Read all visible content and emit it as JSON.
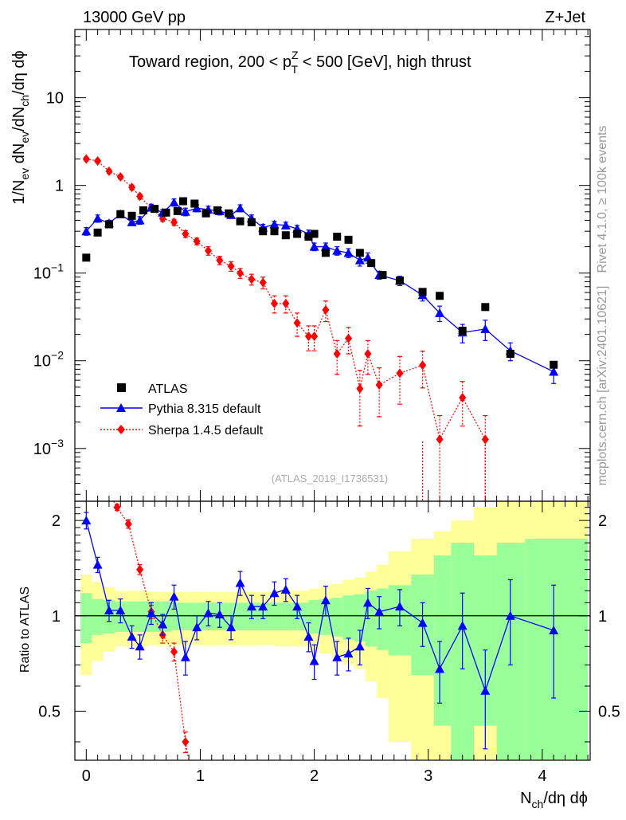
{
  "header": {
    "energy": "13000 GeV pp",
    "process": "Z+Jet",
    "title_prefix": "Toward region, 200 < p",
    "title_sup": "Z",
    "title_sub": "T",
    "title_suffix": " < 500 [GeV], high thrust",
    "rivet": "Rivet 4.1.0, ≥ 100k events",
    "mcplots": "mcplots.cern.ch [arXiv:2401.10621]",
    "analysis": "(ATLAS_2019_I1736531)"
  },
  "axes": {
    "y_main_parts": [
      "1/N",
      "ev",
      " dN",
      "ev",
      "/dN",
      "ch",
      "/dη dϕ"
    ],
    "y_ratio": "Ratio to ATLAS",
    "x_parts": [
      "N",
      "ch",
      "/dη dϕ"
    ],
    "x_ticks": [
      "0",
      "1",
      "2",
      "3",
      "4"
    ],
    "y_main_ticks": [
      {
        "base": "10",
        "exp": "",
        "v": 10
      },
      {
        "base": "1",
        "exp": "",
        "v": 1
      },
      {
        "base": "10",
        "exp": "−1",
        "v": 0.1
      },
      {
        "base": "10",
        "exp": "−2",
        "v": 0.01
      },
      {
        "base": "10",
        "exp": "−3",
        "v": 0.001
      }
    ],
    "y_ratio_ticks": [
      "2",
      "1",
      "0.5"
    ]
  },
  "legend": {
    "atlas": "ATLAS",
    "pythia": "Pythia 8.315 default",
    "sherpa": "Sherpa 1.4.5 default"
  },
  "colors": {
    "atlas": "#000000",
    "pythia": "#0000ff",
    "sherpa": "#ff0000",
    "band_inner": "#99ff99",
    "band_outer": "#ffff99"
  },
  "chart_data": {
    "type": "scatter",
    "xlim": [
      -0.1,
      4.42
    ],
    "ylim_main": [
      0.00025,
      60
    ],
    "ylim_ratio": [
      0.35,
      2.3
    ],
    "xlabel": "Nch/dη dϕ",
    "ylabel": "1/Nev dNev/dNch/dη dϕ",
    "atlas": {
      "x": [
        0.0,
        0.1,
        0.2,
        0.3,
        0.4,
        0.5,
        0.6,
        0.7,
        0.8,
        0.85,
        0.95,
        1.05,
        1.15,
        1.25,
        1.35,
        1.45,
        1.55,
        1.65,
        1.75,
        1.85,
        1.95,
        2.0,
        2.1,
        2.2,
        2.3,
        2.4,
        2.5,
        2.6,
        2.75,
        2.95,
        3.1,
        3.3,
        3.5,
        3.72,
        4.1
      ],
      "y": [
        0.15,
        0.29,
        0.36,
        0.47,
        0.45,
        0.52,
        0.54,
        0.49,
        0.51,
        0.66,
        0.62,
        0.48,
        0.52,
        0.48,
        0.39,
        0.38,
        0.3,
        0.3,
        0.27,
        0.28,
        0.26,
        0.28,
        0.17,
        0.26,
        0.24,
        0.17,
        0.13,
        0.095,
        0.082,
        0.061,
        0.055,
        0.022,
        0.041,
        0.012,
        0.009
      ]
    },
    "pythia": {
      "x": [
        0.0,
        0.1,
        0.2,
        0.3,
        0.4,
        0.47,
        0.57,
        0.67,
        0.77,
        0.87,
        0.97,
        1.07,
        1.17,
        1.27,
        1.35,
        1.45,
        1.55,
        1.65,
        1.75,
        1.85,
        1.95,
        2.0,
        2.1,
        2.2,
        2.3,
        2.4,
        2.47,
        2.57,
        2.75,
        2.95,
        3.1,
        3.3,
        3.5,
        3.72,
        4.1
      ],
      "y": [
        0.3,
        0.42,
        0.37,
        0.47,
        0.38,
        0.4,
        0.56,
        0.49,
        0.64,
        0.5,
        0.55,
        0.53,
        0.51,
        0.46,
        0.55,
        0.42,
        0.33,
        0.36,
        0.35,
        0.32,
        0.28,
        0.2,
        0.2,
        0.18,
        0.17,
        0.14,
        0.15,
        0.095,
        0.082,
        0.056,
        0.035,
        0.021,
        0.023,
        0.013,
        0.0075
      ],
      "err": [
        0.03,
        0.04,
        0.03,
        0.04,
        0.03,
        0.04,
        0.05,
        0.04,
        0.06,
        0.05,
        0.05,
        0.05,
        0.05,
        0.04,
        0.05,
        0.04,
        0.03,
        0.03,
        0.03,
        0.03,
        0.03,
        0.02,
        0.02,
        0.02,
        0.02,
        0.02,
        0.02,
        0.01,
        0.01,
        0.008,
        0.007,
        0.005,
        0.006,
        0.003,
        0.002
      ]
    },
    "sherpa": {
      "x": [
        0.0,
        0.1,
        0.2,
        0.3,
        0.4,
        0.47,
        0.57,
        0.67,
        0.77,
        0.87,
        0.97,
        1.07,
        1.17,
        1.27,
        1.35,
        1.45,
        1.55,
        1.65,
        1.75,
        1.85,
        1.95,
        2.0,
        2.1,
        2.2,
        2.3,
        2.4,
        2.47,
        2.57,
        2.75,
        2.95,
        3.1,
        3.3,
        3.5,
        3.72,
        4.1
      ],
      "y": [
        2.0,
        1.9,
        1.45,
        1.25,
        0.95,
        0.75,
        0.55,
        0.42,
        0.38,
        0.28,
        0.23,
        0.18,
        0.14,
        0.12,
        0.1,
        0.085,
        0.078,
        0.045,
        0.045,
        0.027,
        0.019,
        0.019,
        0.038,
        0.012,
        0.018,
        0.0048,
        0.012,
        0.0053,
        0.0072,
        0.0089,
        0.00127,
        0.0038,
        0.00127,
        null,
        null
      ],
      "err": [
        0.1,
        0.1,
        0.08,
        0.07,
        0.06,
        0.05,
        0.04,
        0.03,
        0.03,
        0.025,
        0.02,
        0.02,
        0.015,
        0.015,
        0.013,
        0.012,
        0.012,
        0.01,
        0.01,
        0.008,
        0.006,
        0.006,
        0.01,
        0.005,
        0.006,
        0.003,
        0.005,
        0.003,
        0.004,
        0.004,
        0.0011,
        0.002,
        0.0011,
        null,
        null
      ]
    },
    "ratio": {
      "pythia": {
        "x": [
          0.0,
          0.1,
          0.2,
          0.3,
          0.4,
          0.47,
          0.57,
          0.67,
          0.77,
          0.87,
          0.97,
          1.07,
          1.17,
          1.27,
          1.35,
          1.45,
          1.55,
          1.65,
          1.75,
          1.85,
          1.95,
          2.0,
          2.1,
          2.2,
          2.3,
          2.4,
          2.47,
          2.57,
          2.75,
          2.95,
          3.1,
          3.3,
          3.5,
          3.72,
          4.1
        ],
        "y": [
          2.0,
          1.45,
          1.04,
          1.04,
          0.86,
          0.8,
          1.02,
          0.94,
          1.15,
          0.74,
          0.92,
          1.02,
          1.01,
          0.92,
          1.27,
          1.07,
          1.07,
          1.18,
          1.21,
          1.07,
          0.86,
          0.72,
          1.12,
          0.74,
          0.76,
          0.8,
          1.1,
          1.03,
          1.07,
          0.95,
          0.68,
          0.93,
          0.58,
          1.0,
          0.9
        ],
        "err": [
          0.12,
          0.08,
          0.08,
          0.09,
          0.07,
          0.07,
          0.08,
          0.07,
          0.1,
          0.09,
          0.08,
          0.09,
          0.09,
          0.08,
          0.11,
          0.09,
          0.09,
          0.1,
          0.1,
          0.09,
          0.09,
          0.09,
          0.12,
          0.09,
          0.09,
          0.1,
          0.12,
          0.12,
          0.14,
          0.15,
          0.15,
          0.25,
          0.2,
          0.3,
          0.35
        ]
      },
      "sherpa": {
        "x": [
          0.27,
          0.37,
          0.47,
          0.57,
          0.67,
          0.77,
          0.87
        ],
        "y": [
          2.2,
          1.95,
          1.4,
          1.03,
          0.87,
          0.77,
          0.4
        ],
        "err": [
          0.05,
          0.06,
          0.05,
          0.05,
          0.05,
          0.05,
          0.03
        ]
      },
      "bands": {
        "edges": [
          -0.05,
          0.05,
          0.15,
          0.25,
          0.35,
          0.45,
          0.55,
          0.65,
          0.75,
          0.85,
          0.95,
          1.05,
          1.15,
          1.25,
          1.35,
          1.45,
          1.55,
          1.65,
          1.75,
          1.85,
          1.95,
          2.05,
          2.15,
          2.25,
          2.35,
          2.45,
          2.55,
          2.65,
          2.85,
          3.05,
          3.2,
          3.4,
          3.6,
          3.85,
          4.4
        ],
        "inner": [
          0.18,
          0.13,
          0.12,
          0.11,
          0.11,
          0.11,
          0.11,
          0.11,
          0.1,
          0.1,
          0.1,
          0.1,
          0.1,
          0.1,
          0.1,
          0.1,
          0.1,
          0.1,
          0.1,
          0.1,
          0.12,
          0.13,
          0.14,
          0.16,
          0.17,
          0.2,
          0.22,
          0.25,
          0.35,
          0.55,
          0.7,
          0.55,
          0.7,
          0.75
        ],
        "outer": [
          0.35,
          0.28,
          0.23,
          0.2,
          0.2,
          0.2,
          0.19,
          0.19,
          0.19,
          0.19,
          0.19,
          0.19,
          0.19,
          0.19,
          0.19,
          0.19,
          0.19,
          0.2,
          0.2,
          0.2,
          0.22,
          0.24,
          0.26,
          0.3,
          0.32,
          0.38,
          0.45,
          0.6,
          0.75,
          0.85,
          1.0,
          1.2,
          1.3,
          1.35
        ]
      }
    }
  }
}
